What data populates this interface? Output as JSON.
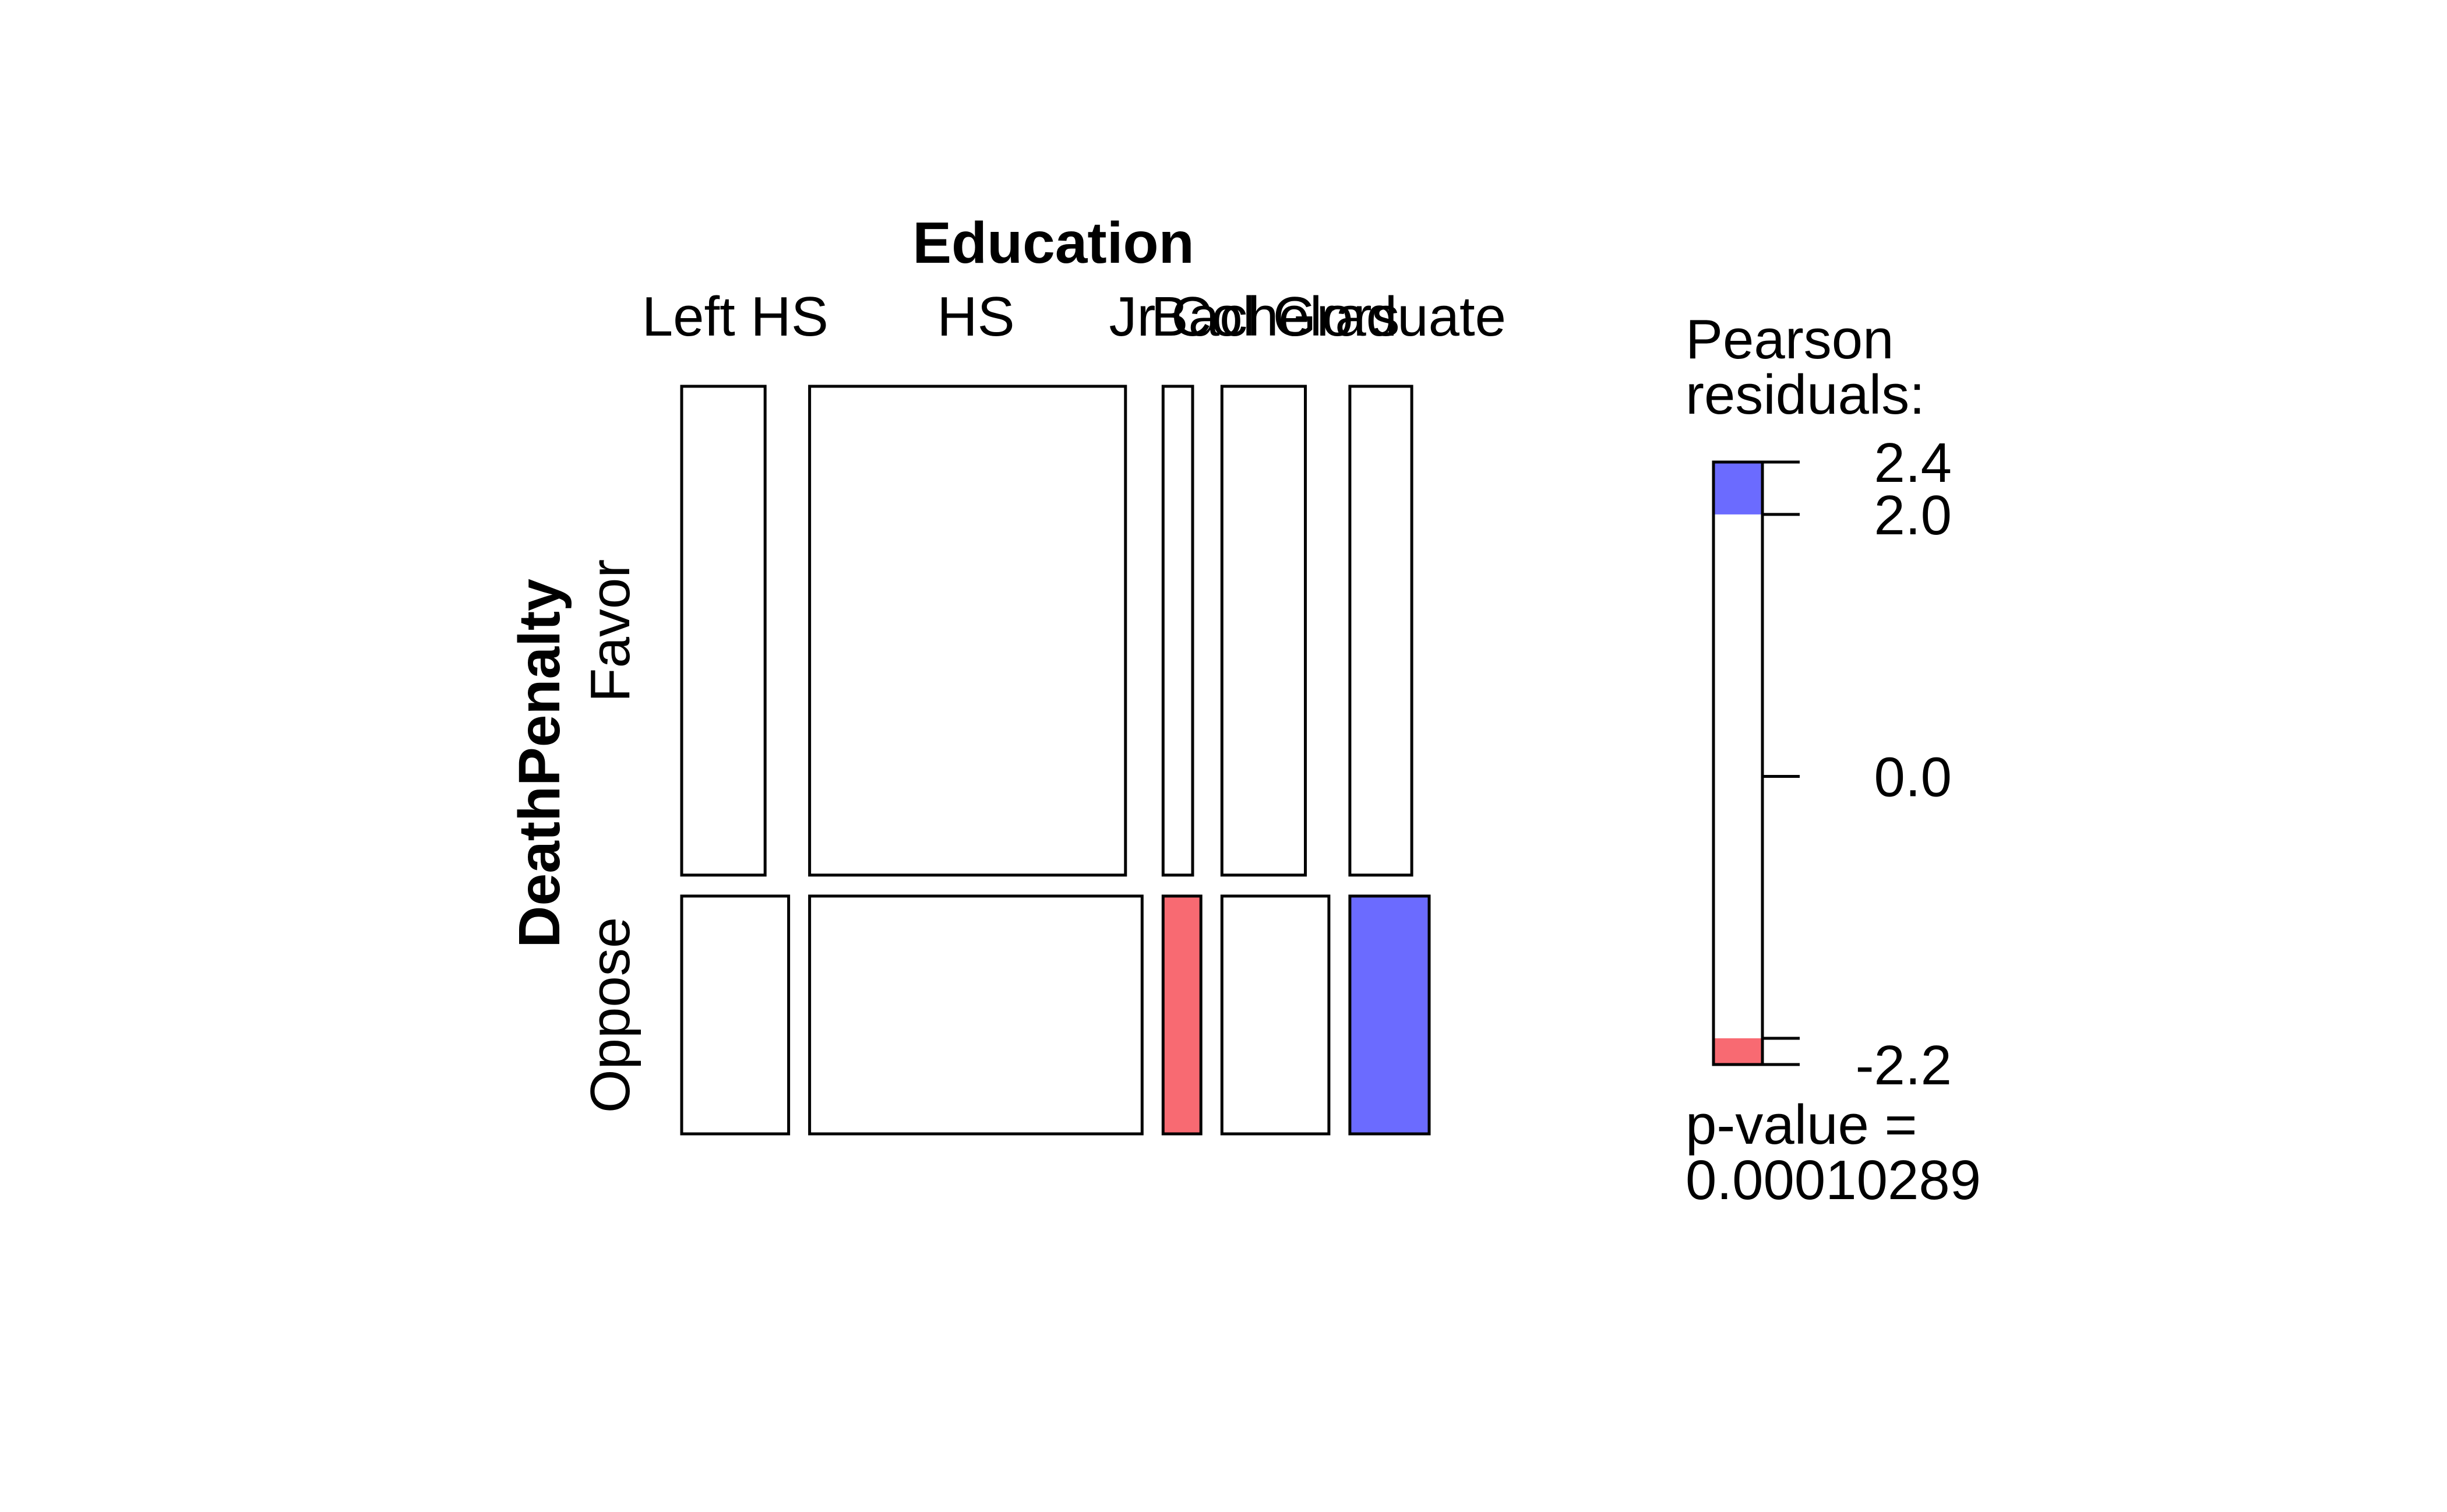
{
  "chart_data": {
    "type": "mosaic",
    "x_variable": "Education",
    "y_variable": "DeathPenalty",
    "categories": [
      "Left HS",
      "HS",
      "Jr Col",
      "Bachelors",
      "Graduate"
    ],
    "rows": [
      "Favor",
      "Oppose"
    ],
    "column_proportions": [
      0.147,
      0.457,
      0.052,
      0.147,
      0.109
    ],
    "favor_share": [
      0.69,
      0.69,
      0.66,
      0.69,
      0.56
    ],
    "cell_shading": {
      "Favor": [
        "none",
        "none",
        "none",
        "none",
        "none"
      ],
      "Oppose": [
        "none",
        "none",
        "negative",
        "none",
        "positive"
      ]
    },
    "legend": {
      "title_line1": "Pearson",
      "title_line2": "residuals:",
      "ticks": [
        "2.4",
        "2.0",
        "0.0",
        "-2.2"
      ],
      "max": 2.4,
      "min": -2.2,
      "pvalue_line1": "p-value =",
      "pvalue_line2": "0.00010289"
    },
    "colors": {
      "positive": "#6b6bff",
      "negative": "#f86a72",
      "neutral": "#ffffff",
      "border": "#000000"
    }
  }
}
